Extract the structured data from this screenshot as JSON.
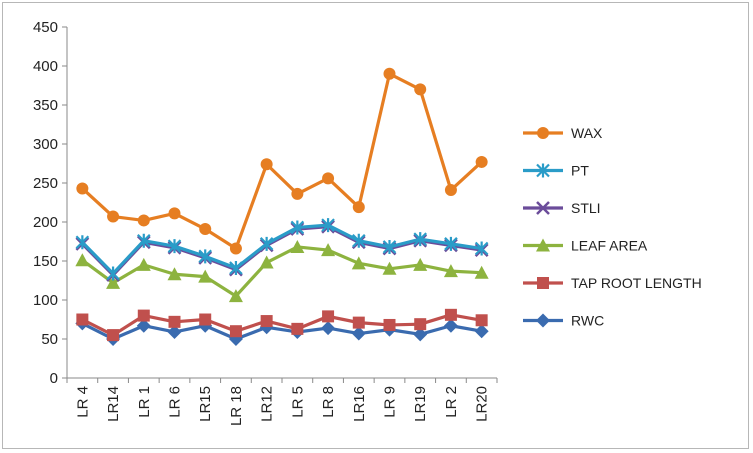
{
  "chart_data": {
    "type": "line",
    "title": "",
    "xlabel": "",
    "ylabel": "",
    "ylim": [
      0,
      450
    ],
    "yticks": [
      0,
      50,
      100,
      150,
      200,
      250,
      300,
      350,
      400,
      450
    ],
    "grid": false,
    "legend_position": "right",
    "categories": [
      "LR 4",
      "LR14",
      "LR 1",
      "LR  6",
      "LR15",
      "LR 18",
      "LR12",
      "LR 5",
      "LR  8",
      "LR16",
      "LR  9",
      "LR19",
      "LR 2",
      "LR20"
    ],
    "series": [
      {
        "name": "WAX",
        "color": "#E67E22",
        "marker": "circle",
        "values": [
          243,
          207,
          202,
          211,
          191,
          166,
          274,
          236,
          256,
          219,
          390,
          370,
          241,
          277
        ]
      },
      {
        "name": "PT",
        "color": "#2A9CC8",
        "marker": "asterisk",
        "values": [
          174,
          134,
          176,
          169,
          156,
          141,
          172,
          193,
          196,
          176,
          168,
          178,
          172,
          166
        ]
      },
      {
        "name": "STLI",
        "color": "#6B4C9A",
        "marker": "x",
        "values": [
          172,
          132,
          174,
          167,
          154,
          139,
          170,
          191,
          194,
          174,
          166,
          176,
          170,
          164
        ]
      },
      {
        "name": "LEAF AREA",
        "color": "#8DB33F",
        "marker": "triangle",
        "values": [
          151,
          122,
          145,
          133,
          130,
          105,
          148,
          168,
          164,
          147,
          140,
          145,
          137,
          135
        ]
      },
      {
        "name": "TAP ROOT LENGTH",
        "color": "#C0504D",
        "marker": "square",
        "values": [
          75,
          55,
          80,
          72,
          75,
          60,
          73,
          63,
          79,
          71,
          68,
          69,
          81,
          74
        ]
      },
      {
        "name": "RWC",
        "color": "#3A6BAF",
        "marker": "diamond",
        "values": [
          70,
          50,
          67,
          59,
          67,
          50,
          65,
          59,
          64,
          57,
          62,
          56,
          67,
          60
        ]
      }
    ]
  }
}
